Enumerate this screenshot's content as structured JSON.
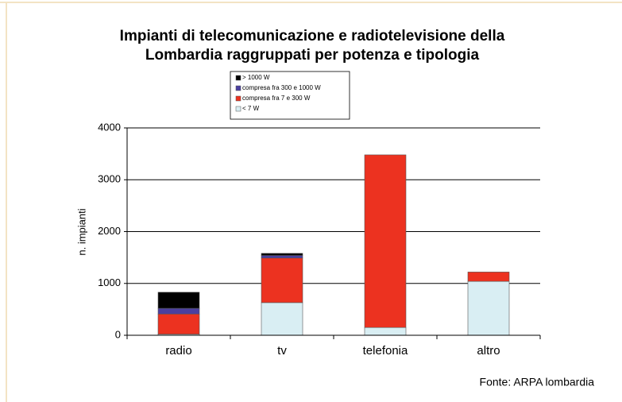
{
  "chart_data": {
    "type": "stacked_bar",
    "title": [
      "Impianti di telecomunicazione e radiotelevisione della",
      "Lombardia raggruppati per potenza e tipologia"
    ],
    "y_label": "n. impianti",
    "annotation": "Fonte: ARPA lombardia",
    "categories": [
      "radio",
      "tv",
      "telefonia",
      "altro"
    ],
    "series": [
      {
        "name": "> 1000 W",
        "color": "#000000",
        "values": [
          310,
          40,
          0,
          0
        ]
      },
      {
        "name": "compresa fra 300 e 1000 W",
        "color": "#4b3fa0",
        "values": [
          110,
          50,
          0,
          0
        ]
      },
      {
        "name": "compresa fra 7 e 300 W",
        "color": "#ec3220",
        "values": [
          390,
          860,
          3330,
          180
        ]
      },
      {
        "name": "< 7 W",
        "color": "#d9eef3",
        "values": [
          20,
          630,
          150,
          1040
        ]
      }
    ],
    "ylim": [
      0,
      4000
    ],
    "yticks": [
      0,
      1000,
      2000,
      3000,
      4000
    ],
    "grid": true
  }
}
